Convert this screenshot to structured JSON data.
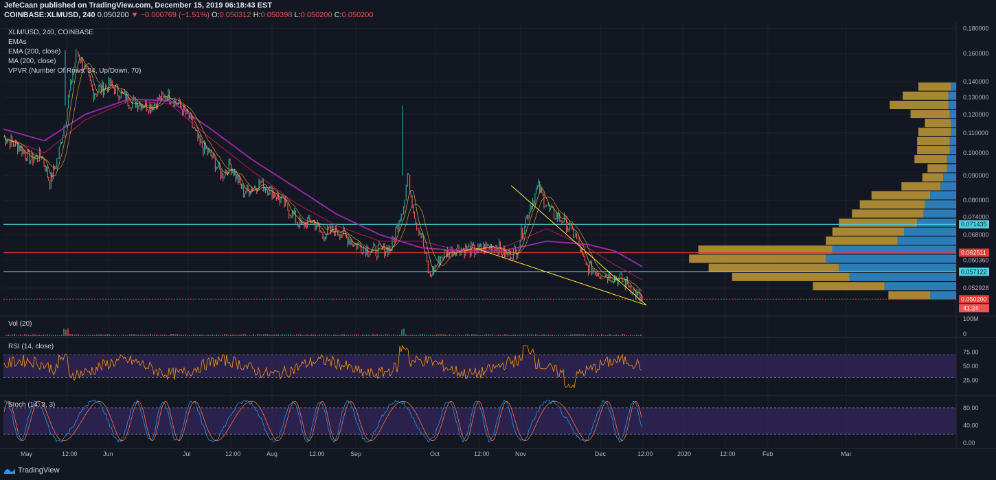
{
  "header": {
    "published": "JefeCaan published on TradingView.com, December 15, 2019 06:18:43 EST",
    "symbol": "COINBASE:XLMUSD, 240",
    "last": "0.050200",
    "change": "−0.000769 (−1.51%)",
    "o_label": "O:",
    "o_val": "0.050312",
    "h_label": "H:",
    "h_val": "0.050398",
    "l_label": "L:",
    "l_val": "0.050200",
    "c_label": "C:",
    "c_val": "0.050200"
  },
  "legend": {
    "title": "XLM/USD, 240, COINBASE",
    "items": [
      "EMAs",
      "EMA (200, close)",
      "MA (200, close)",
      "VPVR (Number Of Rows, 24, Up/Down, 70)"
    ]
  },
  "panes": {
    "vol": "Vol (20)",
    "rsi": "RSI (14, close)",
    "stoch": "Stoch (14, 3, 3)"
  },
  "brand": "TradingView",
  "colors": {
    "background": "#131722",
    "up": "#26a69a",
    "down": "#ef5350",
    "ma200": "#9c27b0",
    "ema": "#f5c542",
    "trendline": "#ffeb3b",
    "level_cyan": "#4dd0e1",
    "level_red": "#e53935",
    "vp_up": "#2f87c8",
    "vp_down": "#b89236",
    "rsi_line": "#ff9800",
    "band": "#3b2a6b"
  },
  "chart_data": {
    "type": "line",
    "title": "XLM/USD, 240, COINBASE",
    "price_axis": {
      "ticks": [
        "0.180000",
        "0.160000",
        "0.140000",
        "0.130000",
        "0.120000",
        "0.110000",
        "0.100000",
        "0.090000",
        "0.080000",
        "0.074000",
        "0.068000",
        "0.060360",
        "0.052928"
      ],
      "tick_values": [
        0.18,
        0.16,
        0.14,
        0.13,
        0.12,
        0.11,
        0.1,
        0.09,
        0.08,
        0.074,
        0.068,
        0.06036,
        0.052928
      ],
      "scale": "log",
      "range": [
        0.0465,
        0.185
      ]
    },
    "x_axis": {
      "labels": [
        "May",
        "12:00",
        "Jun",
        "Jul",
        "12:00",
        "Aug",
        "12:00",
        "Sep",
        "Oct",
        "12:00",
        "Nov",
        "Dec",
        "12:00",
        "2020",
        "12:00",
        "Feb",
        "Mar"
      ]
    },
    "price_path": {
      "dates": [
        "2019-04-25",
        "2019-05-01",
        "2019-05-05",
        "2019-05-09",
        "2019-05-12",
        "2019-05-15",
        "2019-05-18",
        "2019-05-22",
        "2019-05-28",
        "2019-06-03",
        "2019-06-10",
        "2019-06-18",
        "2019-06-24",
        "2019-06-28",
        "2019-07-02",
        "2019-07-06",
        "2019-07-10",
        "2019-07-14",
        "2019-07-17",
        "2019-07-22",
        "2019-07-28",
        "2019-08-03",
        "2019-08-08",
        "2019-08-12",
        "2019-08-16",
        "2019-08-20",
        "2019-08-25",
        "2019-09-01",
        "2019-09-08",
        "2019-09-14",
        "2019-09-19",
        "2019-09-20",
        "2019-09-23",
        "2019-09-25",
        "2019-09-28",
        "2019-10-03",
        "2019-10-08",
        "2019-10-15",
        "2019-10-22",
        "2019-10-26",
        "2019-10-30",
        "2019-11-04",
        "2019-11-07",
        "2019-11-11",
        "2019-11-16",
        "2019-11-21",
        "2019-11-24",
        "2019-11-29",
        "2019-12-04",
        "2019-12-10",
        "2019-12-13",
        "2019-12-15"
      ],
      "close": [
        0.108,
        0.103,
        0.097,
        0.099,
        0.087,
        0.098,
        0.12,
        0.162,
        0.133,
        0.138,
        0.128,
        0.125,
        0.132,
        0.126,
        0.118,
        0.104,
        0.099,
        0.09,
        0.095,
        0.083,
        0.087,
        0.082,
        0.076,
        0.071,
        0.073,
        0.068,
        0.07,
        0.065,
        0.063,
        0.064,
        0.08,
        0.09,
        0.073,
        0.068,
        0.056,
        0.062,
        0.064,
        0.063,
        0.065,
        0.062,
        0.063,
        0.078,
        0.085,
        0.076,
        0.073,
        0.067,
        0.059,
        0.057,
        0.056,
        0.054,
        0.051,
        0.0502
      ]
    },
    "series": [
      {
        "name": "MA (200, close)",
        "dates": [
          "2019-04-25",
          "2019-05-10",
          "2019-05-25",
          "2019-06-10",
          "2019-06-25",
          "2019-07-10",
          "2019-07-25",
          "2019-08-10",
          "2019-08-25",
          "2019-09-10",
          "2019-09-25",
          "2019-10-10",
          "2019-10-25",
          "2019-11-10",
          "2019-11-25",
          "2019-12-05",
          "2019-12-15"
        ],
        "values": [
          0.112,
          0.106,
          0.12,
          0.129,
          0.128,
          0.112,
          0.097,
          0.085,
          0.075,
          0.068,
          0.064,
          0.063,
          0.063,
          0.066,
          0.065,
          0.063,
          0.0585
        ]
      },
      {
        "name": "EMA (200, close)",
        "dates": [
          "2019-04-25",
          "2019-05-10",
          "2019-05-25",
          "2019-06-10",
          "2019-06-25",
          "2019-07-10",
          "2019-07-25",
          "2019-08-10",
          "2019-08-25",
          "2019-09-10",
          "2019-09-25",
          "2019-10-10",
          "2019-10-25",
          "2019-11-10",
          "2019-11-25",
          "2019-12-05",
          "2019-12-15"
        ],
        "values": [
          0.108,
          0.1,
          0.117,
          0.128,
          0.126,
          0.107,
          0.092,
          0.079,
          0.071,
          0.066,
          0.066,
          0.063,
          0.064,
          0.07,
          0.064,
          0.059,
          0.055
        ]
      }
    ],
    "levels": [
      {
        "value": 0.071435,
        "label": "0.071435",
        "color": "cyan"
      },
      {
        "value": 0.062511,
        "label": "0.062511",
        "color": "red"
      },
      {
        "value": 0.057122,
        "label": "0.057122",
        "color": "cyan"
      },
      {
        "value": 0.0502,
        "label": "0.050200",
        "color": "red"
      }
    ],
    "trendlines": [
      {
        "from": [
          "2019-10-28",
          0.0858
        ],
        "to": [
          "2019-12-15",
          0.0488
        ]
      },
      {
        "from": [
          "2019-10-15",
          0.0638
        ],
        "to": [
          "2019-12-15",
          0.0488
        ]
      }
    ],
    "volume_profile": {
      "price_rows": [
        0.05,
        0.0522,
        0.0545,
        0.0569,
        0.0594,
        0.062,
        0.0647,
        0.0675,
        0.0704,
        0.0735,
        0.0767,
        0.0801,
        0.0836,
        0.0872,
        0.091,
        0.095,
        0.0991,
        0.1034,
        0.108,
        0.1127,
        0.1176,
        0.1227,
        0.1281,
        0.1337
      ],
      "up_volume": [
        0.2,
        0.55,
        0.82,
        0.9,
        1.0,
        0.95,
        0.45,
        0.4,
        0.3,
        0.25,
        0.24,
        0.2,
        0.12,
        0.1,
        0.07,
        0.07,
        0.05,
        0.05,
        0.04,
        0.04,
        0.05,
        0.06,
        0.06,
        0.04
      ],
      "down_volume": [
        0.32,
        0.55,
        0.9,
        1.0,
        1.05,
        1.03,
        0.55,
        0.55,
        0.6,
        0.55,
        0.5,
        0.45,
        0.3,
        0.16,
        0.15,
        0.25,
        0.25,
        0.25,
        0.25,
        0.2,
        0.3,
        0.45,
        0.35,
        0.25
      ]
    },
    "rsi": {
      "levels": [
        25,
        50,
        75
      ],
      "ticks": [
        "75.00",
        "50.00",
        "25.00"
      ]
    },
    "stoch": {
      "ticks": [
        "80.00",
        "40.00",
        "0.00"
      ]
    },
    "volume_axis": {
      "ticks": [
        "100M",
        "0"
      ]
    },
    "countdown": "41:24"
  }
}
